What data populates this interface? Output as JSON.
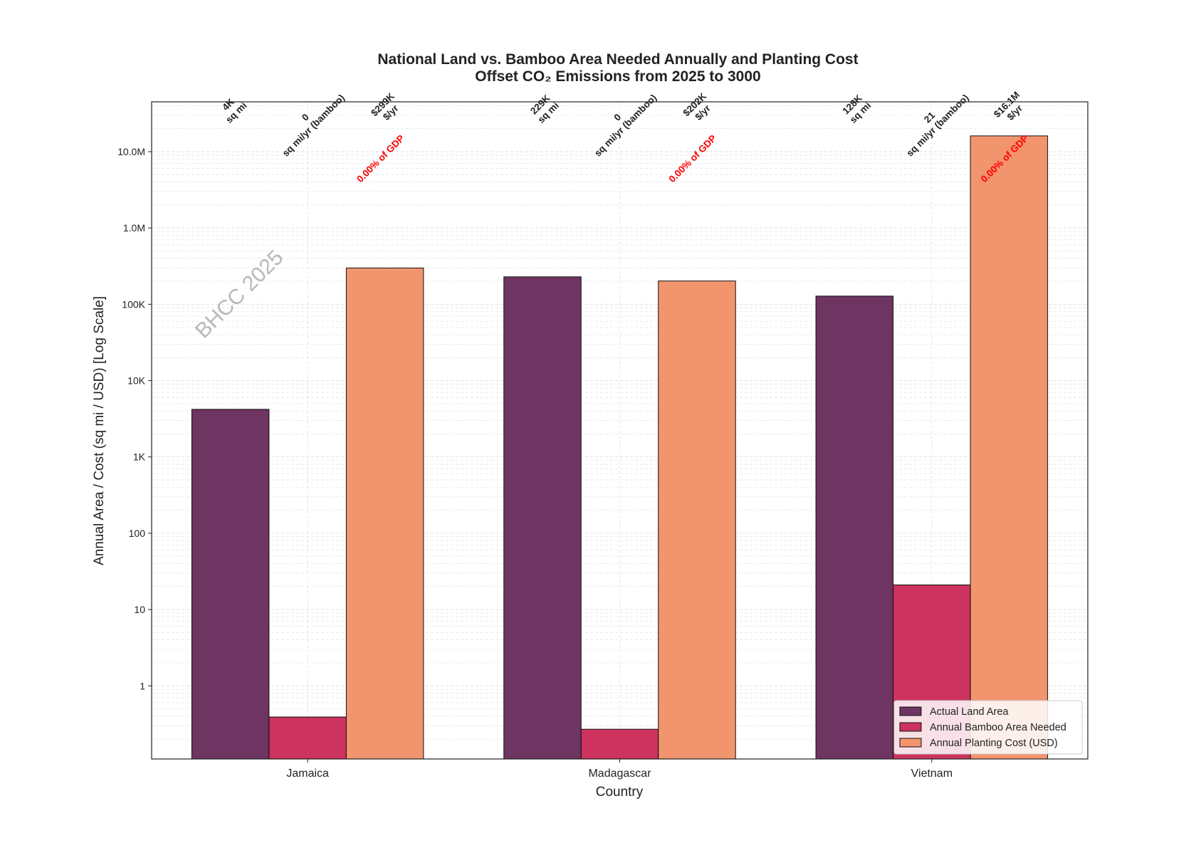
{
  "chart_data": {
    "type": "bar",
    "title_line1": "National Land vs. Bamboo Area Needed Annually and Planting Cost",
    "title_line2": "Offset CO₂ Emissions from 2025 to 3000",
    "xlabel": "Country",
    "ylabel": "Annual Area / Cost (sq mi / USD) [Log Scale]",
    "yscale": "log",
    "ylim": [
      0.11,
      45000000
    ],
    "yticks": [
      1,
      10,
      100,
      1000,
      10000,
      100000,
      1000000,
      10000000
    ],
    "ytick_labels": [
      "1",
      "10",
      "100",
      "1K",
      "10K",
      "100K",
      "1.0M",
      "10.0M"
    ],
    "grid": true,
    "legend_position": "lower-right",
    "watermark": "BHCC 2025",
    "categories": [
      "Jamaica",
      "Madagascar",
      "Vietnam"
    ],
    "series": [
      {
        "name": "Actual Land Area",
        "color": "#6e3462",
        "values": [
          4200,
          229000,
          128000
        ],
        "labels": [
          [
            "4K",
            "sq mi"
          ],
          [
            "229K",
            "sq mi"
          ],
          [
            "128K",
            "sq mi"
          ]
        ]
      },
      {
        "name": "Annual Bamboo Area Needed",
        "color": "#cd335e",
        "values": [
          0.39,
          0.27,
          21
        ],
        "labels": [
          [
            "0",
            "sq mi/yr (bamboo)"
          ],
          [
            "0",
            "sq mi/yr (bamboo)"
          ],
          [
            "21",
            "sq mi/yr (bamboo)"
          ]
        ]
      },
      {
        "name": "Annual Planting Cost (USD)",
        "color": "#f2946e",
        "values": [
          299000,
          202000,
          16100000
        ],
        "labels": [
          [
            "$299K",
            "$/yr"
          ],
          [
            "$202K",
            "$/yr"
          ],
          [
            "$16.1M",
            "$/yr"
          ]
        ]
      }
    ],
    "gdp_labels": [
      "0.00% of GDP",
      "0.00% of GDP",
      "0.00% of GDP"
    ]
  }
}
